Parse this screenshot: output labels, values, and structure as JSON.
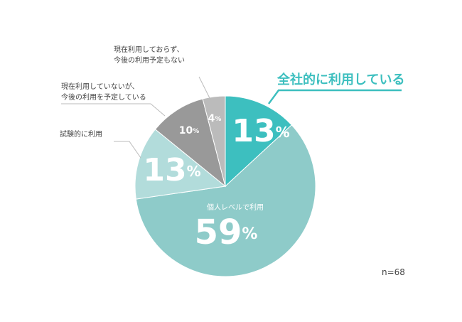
{
  "chart_data": {
    "type": "pie",
    "categories": [
      "全社的に利用している",
      "個人レベルで利用",
      "試験的に利用",
      "現在利用していないが、\n今後の利用を予定している",
      "現在利用しておらず、\n今後の利用予定もない"
    ],
    "values": [
      13,
      59,
      13,
      10,
      4
    ],
    "value_labels": [
      "13%",
      "59%",
      "13%",
      "10%",
      "4%"
    ],
    "colors": [
      "#3dbfbf",
      "#8ecbc9",
      "#b2dcdb",
      "#999999",
      "#bbbbbb"
    ],
    "annotation": "n=68"
  }
}
